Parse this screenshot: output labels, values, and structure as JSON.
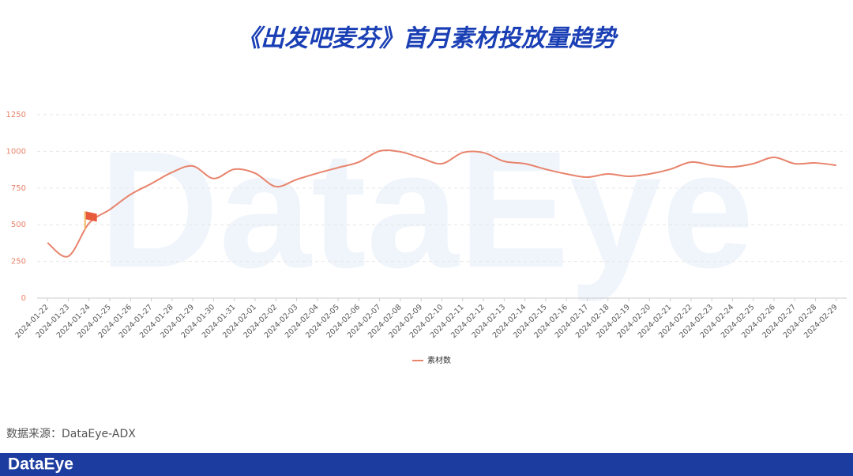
{
  "chart_data": {
    "type": "line",
    "title": "《出发吧麦芬》首月素材投放量趋势",
    "categories": [
      "2024-01-22",
      "2024-01-23",
      "2024-01-24",
      "2024-01-25",
      "2024-01-26",
      "2024-01-27",
      "2024-01-28",
      "2024-01-29",
      "2024-01-30",
      "2024-01-31",
      "2024-02-01",
      "2024-02-02",
      "2024-02-03",
      "2024-02-04",
      "2024-02-05",
      "2024-02-06",
      "2024-02-07",
      "2024-02-08",
      "2024-02-09",
      "2024-02-10",
      "2024-02-11",
      "2024-02-12",
      "2024-02-13",
      "2024-02-14",
      "2024-02-15",
      "2024-02-16",
      "2024-02-17",
      "2024-02-18",
      "2024-02-19",
      "2024-02-20",
      "2024-02-21",
      "2024-02-22",
      "2024-02-23",
      "2024-02-24",
      "2024-02-25",
      "2024-02-26",
      "2024-02-27",
      "2024-02-28",
      "2024-02-29"
    ],
    "series": [
      {
        "name": "素材数",
        "color": "#e8836c",
        "values": [
          377,
          285,
          510,
          603,
          706,
          780,
          857,
          900,
          815,
          878,
          851,
          760,
          808,
          851,
          889,
          927,
          1002,
          997,
          954,
          916,
          991,
          991,
          932,
          916,
          878,
          846,
          824,
          846,
          830,
          846,
          878,
          927,
          905,
          894,
          916,
          959,
          916,
          921,
          905
        ]
      }
    ],
    "ylim": [
      0,
      1250
    ],
    "yticks": [
      0,
      250,
      500,
      750,
      1000,
      1250
    ],
    "grid": true,
    "legend": "bottom"
  },
  "watermark": "DataEye",
  "source": "数据来源：DataEye-ADX",
  "footer": {
    "logo": "DataEye"
  }
}
